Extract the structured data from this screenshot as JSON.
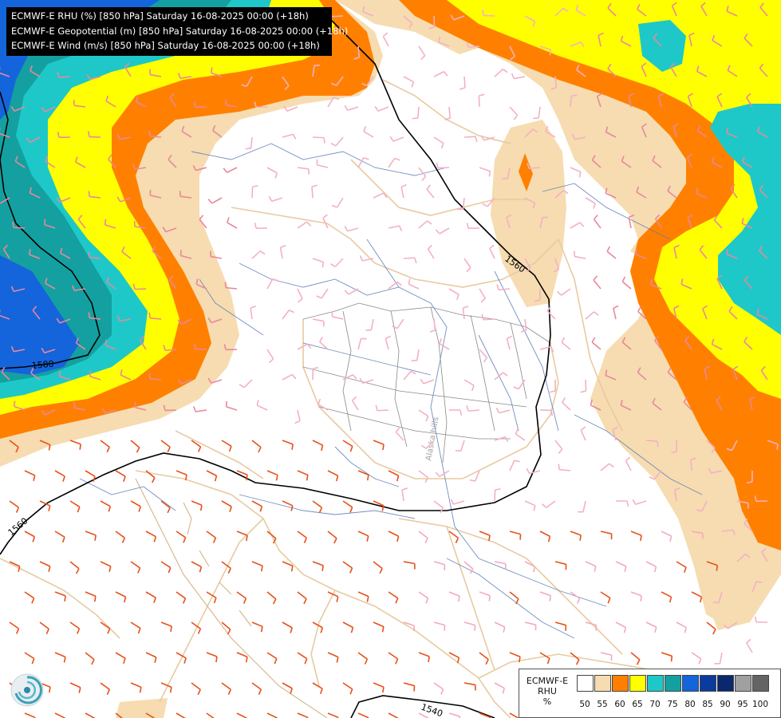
{
  "title_lines": [
    "ECMWF-E RHU (%) [850 hPa] Saturday 16-08-2025 00:00 (+18h)",
    "ECMWF-E Geopotential (m) [850 hPa] Saturday 16-08-2025 00:00 (+18h)",
    "ECMWF-E Wind (m/s) [850 hPa] Saturday 16-08-2025 00:00 (+18h)"
  ],
  "legend": {
    "title_lines": [
      "ECMWF-E",
      "RHU",
      "%"
    ],
    "colors": [
      "#ffffff",
      "#f6dcb0",
      "#ff8000",
      "#ffff00",
      "#1ec8c8",
      "#14a0a0",
      "#1464dc",
      "#0a3ca0",
      "#0a286e",
      "#a0a0a0",
      "#646464"
    ],
    "ticks": [
      "50",
      "55",
      "60",
      "65",
      "70",
      "75",
      "80",
      "85",
      "90",
      "95",
      "100"
    ]
  },
  "contour_labels": [
    "1560",
    "1580",
    "1560",
    "1540"
  ],
  "place_label": "Alaska hills"
}
